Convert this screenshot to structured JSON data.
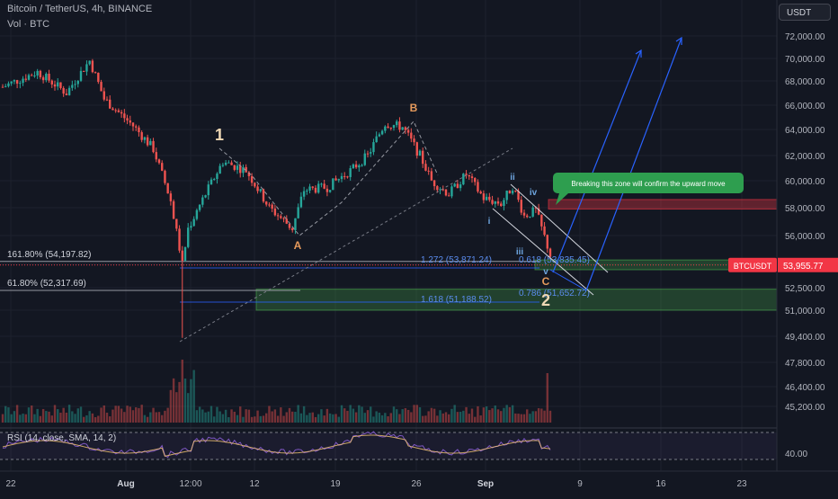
{
  "header": {
    "symbol_line": "Bitcoin / TetherUS, 4h, BINANCE",
    "volume_line": "Vol · BTC"
  },
  "currency_button": "USDT",
  "price_badge": {
    "symbol": "BTCUSDT",
    "price": "53,955.77",
    "color": "#f23645"
  },
  "colors": {
    "up": "#26a69a",
    "down": "#ef5350",
    "background": "#131722",
    "grid": "#1e222d"
  },
  "chart_data": {
    "type": "candlestick",
    "price_axis": {
      "ticks": [
        "72,000.00",
        "70,000.00",
        "68,000.00",
        "66,000.00",
        "64,000.00",
        "62,000.00",
        "60,000.00",
        "58,000.00",
        "56,000.00",
        "54,000.00",
        "52,500.00",
        "51,000.00",
        "49,400.00",
        "47,800.00",
        "46,400.00",
        "45,200.00"
      ],
      "tick_values": [
        72000,
        70000,
        68000,
        66000,
        64000,
        62000,
        60000,
        58000,
        56000,
        54000,
        52500,
        51000,
        49400,
        47800,
        46400,
        45200
      ],
      "scale": "log"
    },
    "time_axis": {
      "labels": [
        "22",
        "Aug",
        "12:00",
        "12",
        "19",
        "26",
        "Sep",
        "9",
        "16",
        "23"
      ],
      "bold": [
        false,
        true,
        false,
        false,
        false,
        false,
        true,
        false,
        false,
        false
      ]
    },
    "fib_levels": [
      {
        "label": "161.80% (54,197.82)",
        "value": 54197.82
      },
      {
        "label": "61.80% (52,317.69)",
        "value": 52317.69
      }
    ],
    "extension_labels": [
      {
        "label": "1.272 (53,871.24)",
        "value": 53871.24
      },
      {
        "label": "1.618 (51,188.52)",
        "value": 51188.52
      },
      {
        "label": "0.618 (53,835.45)",
        "value": 53835.45
      },
      {
        "label": "0.786 (51,652.72)",
        "value": 51652.72
      }
    ],
    "zones": [
      {
        "type": "resistance",
        "from": 57900,
        "to": 58600,
        "color": "#f23645"
      },
      {
        "type": "support",
        "from": 53650,
        "to": 54300,
        "color": "#4caf50"
      },
      {
        "type": "support",
        "from": 51000,
        "to": 52400,
        "color": "#4caf50"
      }
    ],
    "wave_labels": [
      {
        "text": "1",
        "color": "#f0d9b5"
      },
      {
        "text": "A",
        "color": "#e69a5c"
      },
      {
        "text": "B",
        "color": "#e69a5c"
      },
      {
        "text": "2",
        "color": "#f0d9b5"
      },
      {
        "text": "C",
        "color": "#e69a5c"
      },
      {
        "text": "i",
        "color": "#6ea6e0"
      },
      {
        "text": "ii",
        "color": "#6ea6e0"
      },
      {
        "text": "iii",
        "color": "#6ea6e0"
      },
      {
        "text": "iv",
        "color": "#6ea6e0"
      },
      {
        "text": "v",
        "color": "#6ea6e0"
      }
    ],
    "annotation": "Breaking this zone will confirm the upward move",
    "anchors": [
      {
        "t": 0,
        "price": 67500
      },
      {
        "t": 12,
        "price": 68800
      },
      {
        "t": 22,
        "price": 67000
      },
      {
        "t": 30,
        "price": 69800
      },
      {
        "t": 35,
        "price": 66500
      },
      {
        "t": 45,
        "price": 64300
      },
      {
        "t": 52,
        "price": 62500
      },
      {
        "t": 58,
        "price": 58500
      },
      {
        "t": 62,
        "price": 54000
      },
      {
        "t": 64,
        "price": 56500
      },
      {
        "t": 70,
        "price": 59000
      },
      {
        "t": 76,
        "price": 61500
      },
      {
        "t": 84,
        "price": 60800
      },
      {
        "t": 92,
        "price": 58000
      },
      {
        "t": 100,
        "price": 56500
      },
      {
        "t": 104,
        "price": 59300
      },
      {
        "t": 112,
        "price": 59500
      },
      {
        "t": 120,
        "price": 60800
      },
      {
        "t": 126,
        "price": 62000
      },
      {
        "t": 132,
        "price": 64500
      },
      {
        "t": 138,
        "price": 64200
      },
      {
        "t": 144,
        "price": 62000
      },
      {
        "t": 148,
        "price": 60000
      },
      {
        "t": 154,
        "price": 59000
      },
      {
        "t": 160,
        "price": 60500
      },
      {
        "t": 166,
        "price": 58700
      },
      {
        "t": 172,
        "price": 58300
      },
      {
        "t": 176,
        "price": 59600
      },
      {
        "t": 180,
        "price": 57400
      },
      {
        "t": 184,
        "price": 57800
      },
      {
        "t": 190,
        "price": 54000
      }
    ],
    "rsi": {
      "label": "RSI (14, close, SMA, 14, 2)",
      "value_label": "40.00",
      "value": 40
    }
  }
}
